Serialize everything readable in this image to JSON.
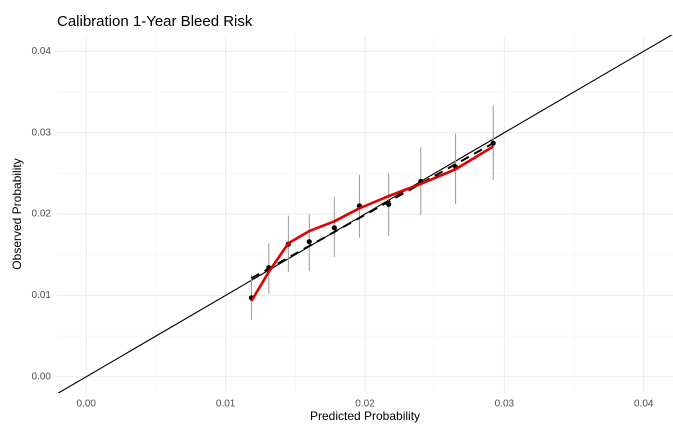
{
  "chart_data": {
    "type": "scatter",
    "title": "Calibration 1-Year Bleed Risk",
    "x_label": "Predicted Probability",
    "y_label": "Observed Probability",
    "xlim": [
      -0.0021,
      0.0421
    ],
    "ylim": [
      -0.002,
      0.042
    ],
    "xticks": [
      {
        "value": 0,
        "label": "0.00"
      },
      {
        "value": 0.01,
        "label": "0.01"
      },
      {
        "value": 0.02,
        "label": "0.02"
      },
      {
        "value": 0.03,
        "label": "0.03"
      },
      {
        "value": 0.04,
        "label": "0.04"
      }
    ],
    "yticks": [
      {
        "value": 0,
        "label": "0.00"
      },
      {
        "value": 0.01,
        "label": "0.01"
      },
      {
        "value": 0.02,
        "label": "0.02"
      },
      {
        "value": 0.03,
        "label": "0.03"
      },
      {
        "value": 0.04,
        "label": "0.04"
      }
    ],
    "x_minor_ticks": [
      0.005,
      0.015,
      0.025,
      0.035
    ],
    "y_minor_ticks": [
      0.005,
      0.015,
      0.025,
      0.035
    ],
    "grid": true,
    "reference_line": {
      "slope": 1,
      "intercept": 0,
      "color": "#000000"
    },
    "series": [
      {
        "style": "points",
        "color": "#000000",
        "error_color": "#999999",
        "x": [
          0.01185,
          0.0131,
          0.0145,
          0.016,
          0.0178,
          0.0196,
          0.0217,
          0.024,
          0.0265,
          0.0292
        ],
        "y": [
          0.0097,
          0.0134,
          0.0163,
          0.0166,
          0.0183,
          0.021,
          0.0212,
          0.024,
          0.0258,
          0.0287
        ],
        "lower": [
          0.007,
          0.0102,
          0.0129,
          0.013,
          0.0147,
          0.0171,
          0.0173,
          0.0199,
          0.0212,
          0.0242
        ],
        "upper": [
          0.0125,
          0.0164,
          0.0198,
          0.02,
          0.0221,
          0.0248,
          0.025,
          0.0282,
          0.0299,
          0.0333
        ]
      },
      {
        "style": "dashed",
        "color": "#000000",
        "x": [
          0.01185,
          0.0292
        ],
        "y": [
          0.0121,
          0.0287
        ]
      },
      {
        "style": "solid",
        "color": "#e00000",
        "x": [
          0.01185,
          0.0131,
          0.0145,
          0.016,
          0.0178,
          0.0196,
          0.0217,
          0.024,
          0.0265,
          0.0292
        ],
        "y": [
          0.0093,
          0.0129,
          0.0164,
          0.0179,
          0.0191,
          0.0207,
          0.0222,
          0.0237,
          0.0255,
          0.0283
        ]
      }
    ]
  }
}
